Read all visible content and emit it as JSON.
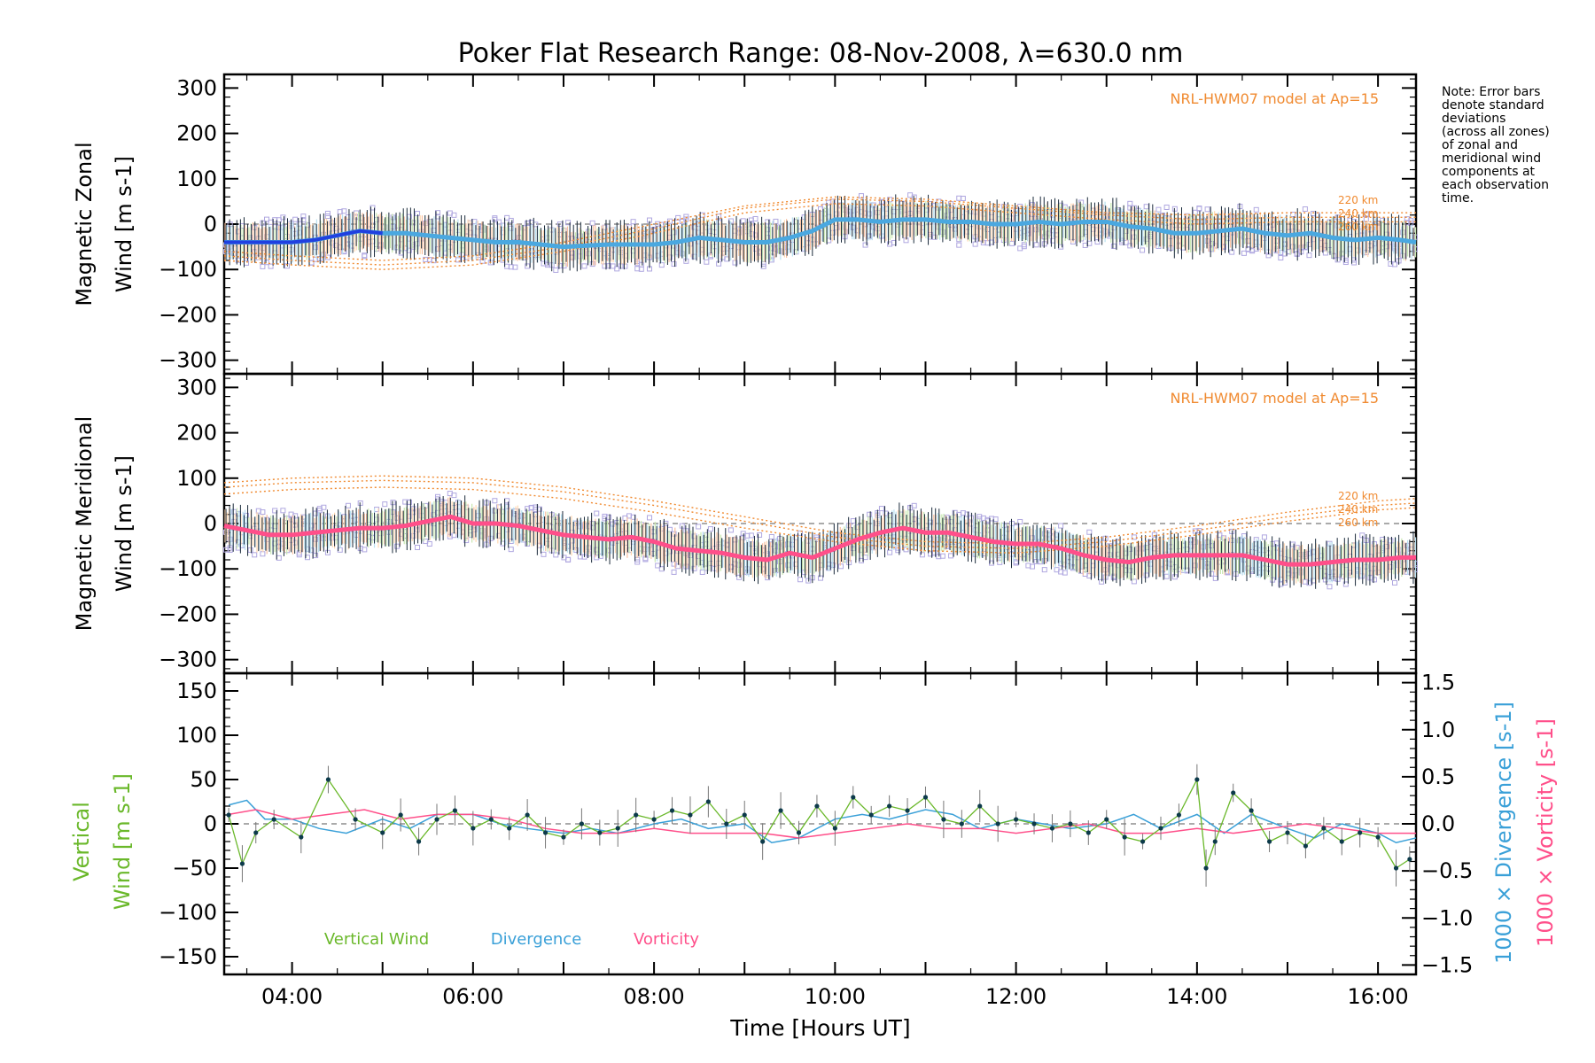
{
  "title": "Poker Flat Research Range: 08-Nov-2008, λ=630.0 nm",
  "note": [
    "Note: Error bars",
    "denote standard",
    "deviations",
    "(across all zones)",
    "of zonal and",
    "meridional wind",
    "components at",
    "each observation",
    "time."
  ],
  "xlabel": "Time [Hours UT]",
  "colors": {
    "model": "#f08a30",
    "zonal_mean_early": "#2040e0",
    "zonal_mean": "#4aa8e0",
    "merid_mean": "#ff4f8a",
    "vertical": "#6ab82a",
    "divergence": "#3aa0d8",
    "vorticity": "#ff4f8a",
    "scatter": "#b0a8e0",
    "errorbar": "#1a2a3a"
  },
  "chart_data": [
    {
      "type": "line",
      "panel": "zonal",
      "ylabel": [
        "Magnetic Zonal",
        "Wind [m s-1]"
      ],
      "ylim": [
        -330,
        330
      ],
      "xlim": [
        3.25,
        16.42
      ],
      "y_ticks": [
        "300",
        "200",
        "100",
        "0",
        "−100",
        "−200",
        "−300"
      ],
      "x_ticks": [
        "04:00",
        "06:00",
        "08:00",
        "10:00",
        "12:00",
        "14:00",
        "16:00"
      ],
      "model_label": "NRL-HWM07 model at Ap=15",
      "model_altitudes": [
        "220 km",
        "240 km",
        "260 km"
      ],
      "series": [
        {
          "kind": "mean",
          "x": [
            3.25,
            3.5,
            3.75,
            4.0,
            4.25,
            4.5,
            4.75,
            5.0,
            5.25,
            5.5,
            5.75,
            6.0,
            6.25,
            6.5,
            6.75,
            7.0,
            7.5,
            8.0,
            8.25,
            8.5,
            8.75,
            9.0,
            9.25,
            9.5,
            9.75,
            10.0,
            10.25,
            10.5,
            10.75,
            11.0,
            11.25,
            11.5,
            11.75,
            12.0,
            12.25,
            12.5,
            12.75,
            13.0,
            13.25,
            13.5,
            13.75,
            14.0,
            14.25,
            14.5,
            14.75,
            15.0,
            15.25,
            15.5,
            15.75,
            16.0,
            16.25,
            16.42
          ],
          "y": [
            -40,
            -40,
            -40,
            -40,
            -35,
            -25,
            -15,
            -20,
            -20,
            -25,
            -30,
            -35,
            -40,
            -40,
            -45,
            -50,
            -45,
            -45,
            -40,
            -30,
            -35,
            -40,
            -40,
            -30,
            -15,
            10,
            10,
            5,
            10,
            10,
            5,
            5,
            0,
            0,
            5,
            0,
            5,
            5,
            -5,
            -10,
            -20,
            -20,
            -15,
            -10,
            -20,
            -25,
            -20,
            -30,
            -35,
            -30,
            -35,
            -40
          ]
        },
        {
          "kind": "model",
          "altitude": "220 km",
          "x": [
            3.25,
            4.0,
            5.0,
            6.0,
            7.0,
            8.0,
            9.0,
            10.0,
            11.0,
            12.0,
            13.0,
            14.0,
            15.0,
            16.0,
            16.42
          ],
          "y": [
            -60,
            -70,
            -80,
            -70,
            -40,
            0,
            40,
            60,
            55,
            40,
            25,
            20,
            25,
            25,
            25
          ]
        },
        {
          "kind": "model",
          "altitude": "240 km",
          "x": [
            3.25,
            4.0,
            5.0,
            6.0,
            7.0,
            8.0,
            9.0,
            10.0,
            11.0,
            12.0,
            13.0,
            14.0,
            15.0,
            16.0,
            16.42
          ],
          "y": [
            -70,
            -80,
            -90,
            -80,
            -50,
            -10,
            35,
            55,
            50,
            35,
            20,
            10,
            15,
            15,
            15
          ]
        },
        {
          "kind": "model",
          "altitude": "260 km",
          "x": [
            3.25,
            4.0,
            5.0,
            6.0,
            7.0,
            8.0,
            9.0,
            10.0,
            11.0,
            12.0,
            13.0,
            14.0,
            15.0,
            16.0,
            16.42
          ],
          "y": [
            -80,
            -90,
            -100,
            -90,
            -60,
            -20,
            25,
            45,
            40,
            25,
            10,
            0,
            5,
            5,
            5
          ]
        }
      ]
    },
    {
      "type": "line",
      "panel": "meridional",
      "ylabel": [
        "Magnetic Meridional",
        "Wind [m s-1]"
      ],
      "ylim": [
        -330,
        330
      ],
      "xlim": [
        3.25,
        16.42
      ],
      "y_ticks": [
        "300",
        "200",
        "100",
        "0",
        "−100",
        "−200",
        "−300"
      ],
      "x_ticks": [
        "04:00",
        "06:00",
        "08:00",
        "10:00",
        "12:00",
        "14:00",
        "16:00"
      ],
      "model_label": "NRL-HWM07 model at Ap=15",
      "model_altitudes": [
        "220 km",
        "240 km",
        "260 km"
      ],
      "series": [
        {
          "kind": "mean",
          "x": [
            3.25,
            3.5,
            3.75,
            4.0,
            4.25,
            4.5,
            4.75,
            5.0,
            5.25,
            5.5,
            5.75,
            6.0,
            6.25,
            6.5,
            6.75,
            7.0,
            7.25,
            7.5,
            7.75,
            8.0,
            8.25,
            8.5,
            8.75,
            9.0,
            9.25,
            9.5,
            9.75,
            10.0,
            10.25,
            10.5,
            10.75,
            11.0,
            11.25,
            11.5,
            11.75,
            12.0,
            12.25,
            12.5,
            12.75,
            13.0,
            13.25,
            13.5,
            13.75,
            14.0,
            14.25,
            14.5,
            14.75,
            15.0,
            15.25,
            15.5,
            15.75,
            16.0,
            16.25,
            16.42
          ],
          "y": [
            -5,
            -15,
            -25,
            -25,
            -20,
            -15,
            -10,
            -10,
            -5,
            5,
            15,
            0,
            0,
            -5,
            -15,
            -25,
            -30,
            -35,
            -30,
            -40,
            -55,
            -60,
            -65,
            -75,
            -80,
            -65,
            -75,
            -55,
            -35,
            -20,
            -10,
            -20,
            -20,
            -30,
            -40,
            -45,
            -45,
            -55,
            -70,
            -80,
            -85,
            -75,
            -70,
            -70,
            -70,
            -70,
            -80,
            -90,
            -90,
            -85,
            -80,
            -80,
            -75,
            -75
          ]
        },
        {
          "kind": "model",
          "altitude": "220 km",
          "x": [
            3.25,
            4.0,
            5.0,
            6.0,
            7.0,
            8.0,
            9.0,
            10.0,
            11.0,
            12.0,
            13.0,
            14.0,
            15.0,
            16.0,
            16.42
          ],
          "y": [
            90,
            100,
            105,
            100,
            80,
            50,
            15,
            -20,
            -40,
            -45,
            -30,
            -5,
            25,
            50,
            55
          ]
        },
        {
          "kind": "model",
          "altitude": "240 km",
          "x": [
            3.25,
            4.0,
            5.0,
            6.0,
            7.0,
            8.0,
            9.0,
            10.0,
            11.0,
            12.0,
            13.0,
            14.0,
            15.0,
            16.0,
            16.42
          ],
          "y": [
            80,
            90,
            95,
            90,
            70,
            40,
            5,
            -30,
            -50,
            -55,
            -40,
            -15,
            15,
            40,
            45
          ]
        },
        {
          "kind": "model",
          "altitude": "260 km",
          "x": [
            3.25,
            4.0,
            5.0,
            6.0,
            7.0,
            8.0,
            9.0,
            10.0,
            11.0,
            12.0,
            13.0,
            14.0,
            15.0,
            16.0,
            16.42
          ],
          "y": [
            65,
            75,
            80,
            75,
            55,
            25,
            -10,
            -40,
            -60,
            -65,
            -50,
            -25,
            5,
            30,
            35
          ]
        }
      ]
    },
    {
      "type": "line",
      "panel": "vertical",
      "ylabel": [
        "Vertical",
        "Wind [m s-1]"
      ],
      "ylim": [
        -170,
        170
      ],
      "xlim": [
        3.25,
        16.42
      ],
      "y_ticks": [
        "150",
        "100",
        "50",
        "0",
        "−50",
        "−100",
        "−150"
      ],
      "y2label_div": "1000 × Divergence [s-1]",
      "y2label_vort": "1000 × Vorticity [s-1]",
      "y2lim": [
        -1.6,
        1.6
      ],
      "y2_ticks": [
        "1.5",
        "1.0",
        "0.5",
        "0.0",
        "−0.5",
        "−1.0",
        "−1.5"
      ],
      "x_ticks": [
        "04:00",
        "06:00",
        "08:00",
        "10:00",
        "12:00",
        "14:00",
        "16:00"
      ],
      "legend": [
        "Vertical Wind",
        "Divergence",
        "Vorticity"
      ],
      "series": [
        {
          "name": "Vertical Wind",
          "x": [
            3.3,
            3.45,
            3.6,
            3.8,
            4.1,
            4.4,
            4.7,
            5.0,
            5.2,
            5.4,
            5.6,
            5.8,
            6.0,
            6.2,
            6.4,
            6.6,
            6.8,
            7.0,
            7.2,
            7.4,
            7.6,
            7.8,
            8.0,
            8.2,
            8.4,
            8.6,
            8.8,
            9.0,
            9.2,
            9.4,
            9.6,
            9.8,
            10.0,
            10.2,
            10.4,
            10.6,
            10.8,
            11.0,
            11.2,
            11.4,
            11.6,
            11.8,
            12.0,
            12.2,
            12.4,
            12.6,
            12.8,
            13.0,
            13.2,
            13.4,
            13.6,
            13.8,
            14.0,
            14.1,
            14.2,
            14.4,
            14.6,
            14.8,
            15.0,
            15.2,
            15.4,
            15.6,
            15.8,
            16.0,
            16.2,
            16.35
          ],
          "y": [
            10,
            -45,
            -10,
            5,
            -15,
            50,
            5,
            -10,
            10,
            -20,
            5,
            15,
            -5,
            5,
            -5,
            10,
            -10,
            -15,
            0,
            -10,
            -5,
            10,
            5,
            15,
            10,
            25,
            0,
            10,
            -20,
            15,
            -10,
            20,
            -5,
            30,
            10,
            20,
            15,
            30,
            5,
            0,
            20,
            0,
            5,
            0,
            -5,
            0,
            -10,
            5,
            -15,
            -20,
            -5,
            10,
            50,
            -50,
            -20,
            35,
            15,
            -20,
            -10,
            -25,
            -5,
            -20,
            -10,
            -15,
            -50,
            -40
          ]
        },
        {
          "name": "Divergence",
          "x": [
            3.3,
            3.5,
            3.7,
            4.0,
            4.3,
            4.6,
            5.0,
            5.3,
            5.6,
            6.0,
            6.3,
            6.6,
            7.0,
            7.3,
            7.6,
            8.0,
            8.3,
            8.6,
            9.0,
            9.3,
            9.6,
            10.0,
            10.3,
            10.6,
            11.0,
            11.3,
            11.6,
            12.0,
            12.3,
            12.6,
            13.0,
            13.3,
            13.6,
            14.0,
            14.3,
            14.6,
            15.0,
            15.3,
            15.6,
            16.0,
            16.2,
            16.42
          ],
          "y": [
            0.2,
            0.25,
            0.05,
            0.05,
            -0.05,
            -0.1,
            0.05,
            -0.05,
            0.1,
            0.1,
            0.0,
            -0.05,
            -0.1,
            -0.05,
            -0.1,
            0.0,
            0.05,
            -0.05,
            0.0,
            -0.2,
            -0.15,
            0.05,
            0.1,
            0.05,
            0.15,
            0.1,
            -0.05,
            0.05,
            0.0,
            -0.05,
            0.0,
            0.1,
            -0.05,
            0.1,
            -0.1,
            0.1,
            -0.05,
            -0.15,
            0.0,
            -0.1,
            -0.2,
            -0.15
          ]
        },
        {
          "name": "Vorticity",
          "x": [
            3.3,
            3.6,
            4.0,
            4.4,
            4.8,
            5.2,
            5.6,
            6.0,
            6.4,
            6.8,
            7.2,
            7.6,
            8.0,
            8.4,
            8.8,
            9.2,
            9.6,
            10.0,
            10.4,
            10.8,
            11.2,
            11.6,
            12.0,
            12.4,
            12.8,
            13.2,
            13.6,
            14.0,
            14.4,
            14.8,
            15.2,
            15.6,
            16.0,
            16.42
          ],
          "y": [
            0.1,
            0.15,
            0.05,
            0.1,
            0.15,
            0.05,
            0.1,
            0.1,
            0.05,
            -0.05,
            -0.1,
            -0.1,
            -0.05,
            -0.1,
            -0.1,
            -0.1,
            -0.15,
            -0.1,
            -0.05,
            0.0,
            -0.05,
            -0.05,
            -0.1,
            -0.05,
            0.0,
            -0.1,
            -0.1,
            -0.05,
            -0.1,
            -0.05,
            0.0,
            -0.05,
            -0.1,
            -0.1
          ]
        }
      ]
    }
  ]
}
